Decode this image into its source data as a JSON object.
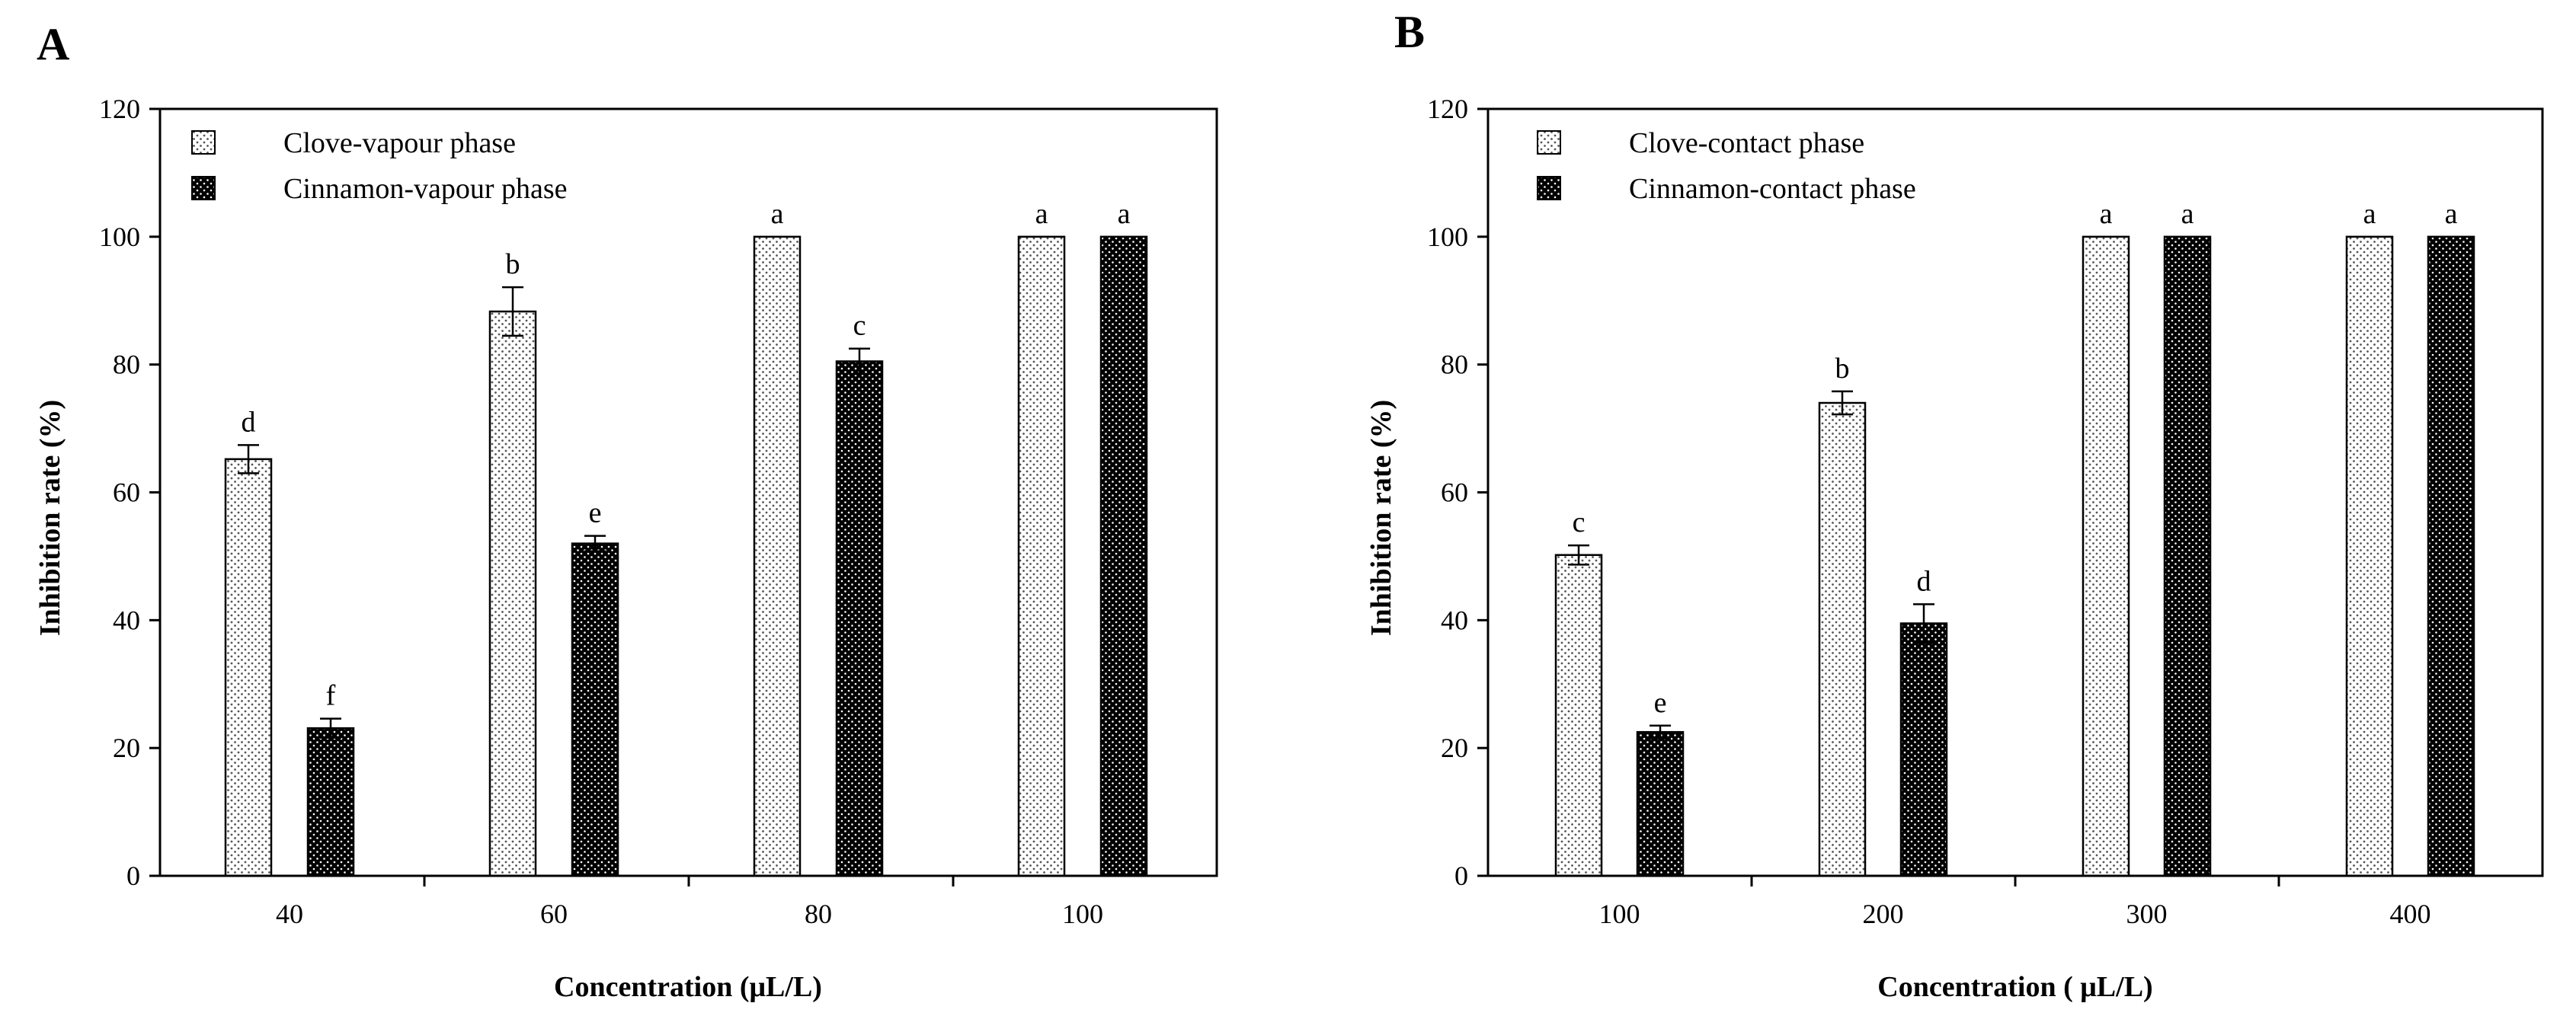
{
  "colors": {
    "clove": "#ffffff",
    "cinnamon": "#000000",
    "axis": "#000000"
  },
  "chart_data": [
    {
      "panel": "A",
      "type": "bar",
      "xlabel": "Concentration (μL/L)",
      "ylabel": "Inhibition rate (%)",
      "ylim": [
        0,
        120
      ],
      "yticks": [
        "0",
        "20",
        "40",
        "60",
        "80",
        "100",
        "120"
      ],
      "categories": [
        "40",
        "60",
        "80",
        "100"
      ],
      "legend_position": "top-left",
      "series": [
        {
          "name": "Clove-vapour phase",
          "pattern": "light-dotted",
          "values": [
            65.2,
            88.3,
            100,
            100
          ],
          "errors": [
            2.2,
            3.8,
            0,
            0
          ],
          "letters": [
            "d",
            "b",
            "a",
            "a"
          ]
        },
        {
          "name": "Cinnamon-vapour phase",
          "pattern": "dark-dotted",
          "values": [
            23.1,
            52.0,
            80.5,
            100
          ],
          "errors": [
            1.5,
            1.2,
            2.0,
            0
          ],
          "letters": [
            "f",
            "e",
            "c",
            "a"
          ]
        }
      ]
    },
    {
      "panel": "B",
      "type": "bar",
      "xlabel": "Concentration ( μL/L)",
      "ylabel": "Inhibition rate (%)",
      "ylim": [
        0,
        120
      ],
      "yticks": [
        "0",
        "20",
        "40",
        "60",
        "80",
        "100",
        "120"
      ],
      "categories": [
        "100",
        "200",
        "300",
        "400"
      ],
      "legend_position": "top-left",
      "series": [
        {
          "name": "Clove-contact phase",
          "pattern": "light-dotted",
          "values": [
            50.2,
            74.0,
            100,
            100
          ],
          "errors": [
            1.5,
            1.8,
            0,
            0
          ],
          "letters": [
            "c",
            "b",
            "a",
            "a"
          ]
        },
        {
          "name": "Cinnamon-contact phase",
          "pattern": "dark-dotted",
          "values": [
            22.5,
            39.5,
            100,
            100
          ],
          "errors": [
            1.0,
            3.0,
            0,
            0
          ],
          "letters": [
            "e",
            "d",
            "a",
            "a"
          ]
        }
      ]
    }
  ]
}
